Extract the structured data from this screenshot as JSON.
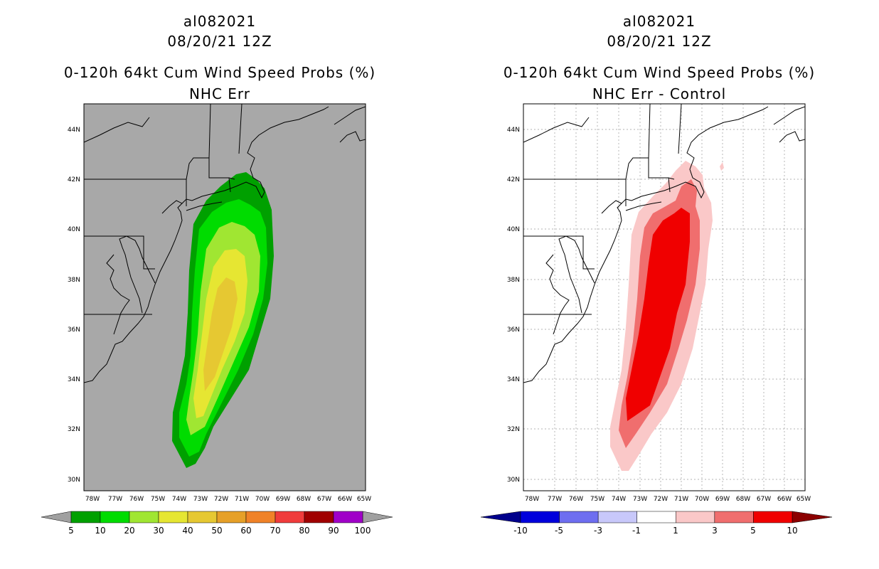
{
  "left_panel": {
    "storm_id": "al082021",
    "datetime": "08/20/21 12Z",
    "product_title": "0-120h 64kt Cum Wind Speed Probs (%)",
    "subtitle": "NHC Err",
    "lat_labels": [
      "44N",
      "42N",
      "40N",
      "38N",
      "36N",
      "34N",
      "32N",
      "30N"
    ],
    "lon_labels": [
      "78W",
      "77W",
      "76W",
      "75W",
      "74W",
      "73W",
      "72W",
      "71W",
      "70W",
      "69W",
      "68W",
      "67W",
      "66W",
      "65W"
    ],
    "colorbar": {
      "labels": [
        "5",
        "10",
        "20",
        "30",
        "40",
        "50",
        "60",
        "70",
        "80",
        "90",
        "100"
      ],
      "colors": [
        "#00a000",
        "#00dc00",
        "#a0e632",
        "#e6e632",
        "#e6c832",
        "#e6a028",
        "#f08228",
        "#f03c3c",
        "#a00000",
        "#a000c8"
      ],
      "end_color": "#a0a0a0"
    },
    "background_color": "#a8a8a8"
  },
  "right_panel": {
    "storm_id": "al082021",
    "datetime": "08/20/21 12Z",
    "product_title": "0-120h 64kt Cum Wind Speed Probs (%)",
    "subtitle": "NHC Err - Control",
    "lat_labels": [
      "44N",
      "42N",
      "40N",
      "38N",
      "36N",
      "34N",
      "32N",
      "30N"
    ],
    "lon_labels": [
      "78W",
      "77W",
      "76W",
      "75W",
      "74W",
      "73W",
      "72W",
      "71W",
      "70W",
      "69W",
      "68W",
      "67W",
      "66W",
      "65W"
    ],
    "colorbar": {
      "labels": [
        "-10",
        "-5",
        "-3",
        "-1",
        "1",
        "3",
        "5",
        "10"
      ],
      "colors": [
        "#0000dc",
        "#6e6ef0",
        "#c8c8fa",
        "#ffffff",
        "#fac8c8",
        "#f06e6e",
        "#f00000"
      ],
      "low_end_color": "#00008c",
      "high_end_color": "#8c0000"
    },
    "background_color": "#ffffff"
  }
}
